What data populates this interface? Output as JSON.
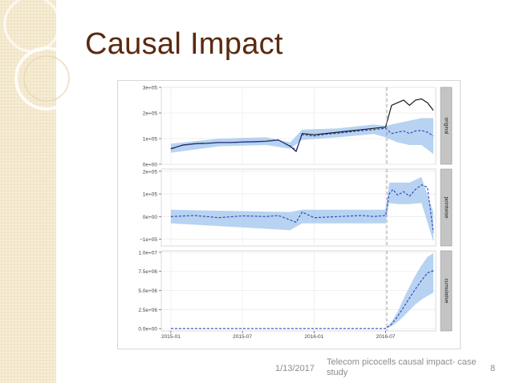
{
  "slide": {
    "title": "Causal Impact",
    "date": "1/13/2017",
    "caption": "Telecom picocells causal impact- case study",
    "page_number": "8"
  },
  "colors": {
    "title": "#5a2a10",
    "side_strip": "#f6ecd4",
    "observed_line": "#1a1a1a",
    "prediction_line": "#2b3fbf",
    "interval_fill": "#9fc4ec",
    "strip_fill": "#c4c4c4"
  },
  "chart_data": {
    "type": "line",
    "x_tick_labels": [
      "2015-01",
      "2015-07",
      "2016-01",
      "2016-07"
    ],
    "x_ticks": [
      0,
      6,
      12,
      18
    ],
    "x_range": [
      -0.8,
      22.2
    ],
    "intervention_month": 18.1,
    "panels": [
      {
        "label": "original",
        "y_ticks": [
          0,
          100000,
          200000,
          300000
        ],
        "y_tick_labels": [
          "0e+00",
          "1e+05",
          "2e+05",
          "3e+05"
        ],
        "ylim": [
          0,
          300000
        ],
        "series": [
          {
            "role": "observed",
            "x": [
              0,
              1,
              2,
              3,
              4,
              5,
              6,
              7,
              8,
              9,
              10,
              10.5,
              11,
              12,
              13,
              14,
              15,
              16,
              17,
              18,
              18.5,
              19,
              19.5,
              20,
              20.5,
              21,
              21.5,
              22
            ],
            "y": [
              60000,
              75000,
              80000,
              82000,
              85000,
              85000,
              87000,
              88000,
              90000,
              95000,
              70000,
              50000,
              120000,
              115000,
              120000,
              125000,
              130000,
              135000,
              140000,
              145000,
              230000,
              240000,
              250000,
              230000,
              250000,
              255000,
              240000,
              210000
            ]
          },
          {
            "role": "prediction",
            "x": [
              0,
              1,
              2,
              3,
              4,
              5,
              6,
              7,
              8,
              9,
              10,
              10.5,
              11,
              12,
              13,
              14,
              15,
              16,
              17,
              18,
              18.5,
              19,
              19.5,
              20,
              20.5,
              21,
              21.5,
              22
            ],
            "y": [
              62000,
              74000,
              79000,
              81000,
              84000,
              84000,
              86000,
              87000,
              89000,
              94000,
              72000,
              55000,
              115000,
              110000,
              117000,
              121000,
              126000,
              131000,
              135000,
              140000,
              120000,
              125000,
              130000,
              120000,
              130000,
              132000,
              125000,
              110000
            ]
          },
          {
            "role": "interval_lower",
            "x": [
              0,
              4,
              8,
              10,
              11,
              14,
              17,
              18,
              19,
              20,
              21,
              22
            ],
            "y": [
              45000,
              70000,
              75000,
              60000,
              95000,
              105000,
              118000,
              105000,
              85000,
              75000,
              75000,
              40000
            ]
          },
          {
            "role": "interval_upper",
            "x": [
              0,
              4,
              8,
              10,
              11,
              14,
              17,
              18,
              19,
              20,
              21,
              22
            ],
            "y": [
              80000,
              100000,
              105000,
              85000,
              135000,
              140000,
              155000,
              150000,
              160000,
              170000,
              180000,
              180000
            ]
          }
        ]
      },
      {
        "label": "pointwise",
        "y_ticks": [
          -100000,
          0,
          100000,
          200000
        ],
        "y_tick_labels": [
          "−1e+05",
          "0e+00",
          "1e+05",
          "2e+05"
        ],
        "ylim": [
          -130000,
          210000
        ],
        "series": [
          {
            "role": "effect",
            "x": [
              0,
              2,
              4,
              6,
              8,
              9,
              10,
              10.5,
              11,
              12,
              14,
              16,
              17,
              18,
              18.3,
              18.6,
              19,
              19.5,
              20,
              20.5,
              21,
              21.5,
              22
            ],
            "y": [
              0,
              5000,
              -5000,
              3000,
              0,
              5000,
              -15000,
              -25000,
              20000,
              -5000,
              0,
              5000,
              0,
              5000,
              100000,
              120000,
              95000,
              110000,
              90000,
              120000,
              140000,
              130000,
              -70000
            ]
          },
          {
            "role": "interval_lower",
            "x": [
              0,
              10,
              11,
              18,
              18.3,
              19,
              20,
              21,
              22
            ],
            "y": [
              -30000,
              -60000,
              -30000,
              -30000,
              60000,
              55000,
              55000,
              60000,
              -110000
            ]
          },
          {
            "role": "interval_upper",
            "x": [
              0,
              10,
              11,
              18,
              18.3,
              19,
              20,
              21,
              22
            ],
            "y": [
              30000,
              20000,
              30000,
              30000,
              150000,
              150000,
              150000,
              175000,
              20000
            ]
          }
        ]
      },
      {
        "label": "cumulative",
        "y_ticks": [
          0,
          2500000,
          5000000,
          7500000,
          10000000
        ],
        "y_tick_labels": [
          "0.0e+00",
          "2.5e+06",
          "5.0e+06",
          "7.5e+06",
          "1.0e+07"
        ],
        "ylim": [
          -300000,
          10200000
        ],
        "series": [
          {
            "role": "cumulative_effect",
            "x": [
              0,
              18,
              18.5,
              19,
              19.5,
              20,
              20.5,
              21,
              21.5,
              22
            ],
            "y": [
              0,
              0,
              600000,
              1600000,
              2800000,
              4000000,
              5200000,
              6300000,
              7300000,
              7600000
            ]
          },
          {
            "role": "interval_lower",
            "x": [
              0,
              18,
              18.5,
              19,
              19.5,
              20,
              20.5,
              21,
              21.5,
              22
            ],
            "y": [
              0,
              0,
              300000,
              900000,
              1600000,
              2400000,
              3200000,
              3800000,
              4300000,
              4700000
            ]
          },
          {
            "role": "interval_upper",
            "x": [
              0,
              18,
              18.5,
              19,
              19.5,
              20,
              20.5,
              21,
              21.5,
              22
            ],
            "y": [
              0,
              0,
              900000,
              2200000,
              3900000,
              5500000,
              7000000,
              8300000,
              9400000,
              9900000
            ]
          }
        ]
      }
    ]
  }
}
